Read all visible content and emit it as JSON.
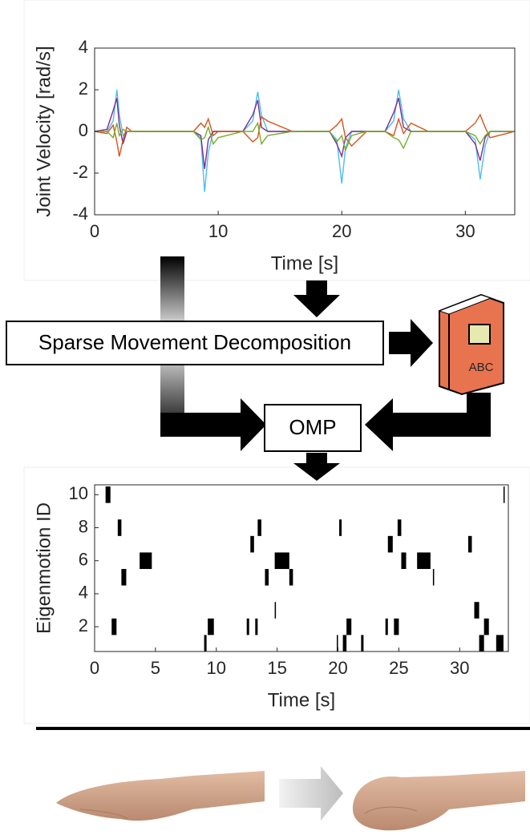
{
  "chart_data": [
    {
      "type": "line",
      "xlabel": "Time [s]",
      "ylabel": "Joint Velocity [rad/s]",
      "xlim": [
        0,
        34
      ],
      "ylim": [
        -4,
        4
      ],
      "xticks": [
        0,
        10,
        20,
        30
      ],
      "yticks": [
        -4,
        -2,
        0,
        2,
        4
      ],
      "x": [
        0,
        1,
        1.5,
        1.8,
        2.0,
        2.3,
        2.6,
        3,
        5,
        8,
        8.6,
        8.9,
        9.2,
        9.6,
        10,
        12,
        12.8,
        13.2,
        13.5,
        14,
        16,
        19,
        19.6,
        20,
        20.3,
        20.8,
        22,
        23.5,
        24.2,
        24.6,
        25,
        25.6,
        27,
        30,
        30.8,
        31.2,
        31.6,
        32,
        34
      ],
      "series": [
        {
          "color": "#4dbeee",
          "values": [
            0,
            0,
            0.5,
            2.0,
            0.8,
            -0.2,
            0,
            0,
            0,
            0,
            -0.3,
            -2.9,
            -1,
            0,
            0,
            0,
            0.5,
            1.9,
            0.8,
            0,
            0,
            0,
            -0.4,
            -2.5,
            -0.8,
            0,
            0,
            0,
            0.5,
            2.0,
            0.6,
            0,
            0,
            0,
            -0.4,
            -2.3,
            -0.7,
            0,
            0
          ]
        },
        {
          "color": "#7e2f8e",
          "values": [
            0,
            0.1,
            1.0,
            1.6,
            0.3,
            -0.6,
            0,
            0,
            0,
            0,
            -0.2,
            -1.8,
            -0.4,
            0,
            0,
            0,
            0.8,
            1.5,
            0.2,
            0,
            0,
            0,
            -0.6,
            -1.2,
            -0.3,
            0,
            0,
            0,
            0.9,
            1.6,
            0.2,
            0,
            0,
            0,
            -0.6,
            -1.4,
            -0.3,
            0,
            0
          ]
        },
        {
          "color": "#d95319",
          "values": [
            0,
            -0.1,
            0.3,
            -0.5,
            -1.2,
            -0.4,
            0.2,
            0,
            0,
            0,
            0.4,
            0.2,
            0.6,
            -0.2,
            0,
            0,
            -0.5,
            -0.3,
            0.7,
            0.5,
            0,
            0,
            0.3,
            0.6,
            -0.3,
            -0.7,
            0,
            0,
            -0.2,
            0.6,
            -0.1,
            0.4,
            0,
            0,
            0.4,
            0.8,
            0.2,
            -0.3,
            0
          ]
        },
        {
          "color": "#77ac30",
          "values": [
            0,
            0,
            -0.3,
            0.4,
            -0.2,
            0.1,
            0,
            0,
            0,
            0,
            -0.4,
            -0.3,
            0.2,
            -0.6,
            -0.3,
            0,
            0,
            0.4,
            -0.6,
            -0.2,
            0,
            0,
            -0.5,
            -0.2,
            -0.9,
            -0.2,
            0,
            0,
            -0.3,
            -0.4,
            -0.8,
            0,
            0,
            0,
            -0.2,
            -0.6,
            -0.2,
            0,
            0
          ]
        }
      ]
    },
    {
      "type": "eventplot",
      "xlabel": "Time [s]",
      "ylabel": "Eigenmotion ID",
      "xlim": [
        0,
        34
      ],
      "ylim": [
        0.5,
        10.6
      ],
      "xticks": [
        0,
        5,
        10,
        15,
        20,
        25,
        30
      ],
      "yticks": [
        2,
        4,
        6,
        8,
        10
      ],
      "color": "#000000",
      "events": [
        {
          "id": 10,
          "start": 0.9,
          "end": 1.3
        },
        {
          "id": 10,
          "start": 33.6,
          "end": 33.7
        },
        {
          "id": 8,
          "start": 1.9,
          "end": 2.2
        },
        {
          "id": 8,
          "start": 13.4,
          "end": 13.7
        },
        {
          "id": 8,
          "start": 20.1,
          "end": 20.3
        },
        {
          "id": 8,
          "start": 24.9,
          "end": 25.2
        },
        {
          "id": 7,
          "start": 12.8,
          "end": 13.1
        },
        {
          "id": 7,
          "start": 24.1,
          "end": 24.5
        },
        {
          "id": 7,
          "start": 30.7,
          "end": 31.0
        },
        {
          "id": 6,
          "start": 3.7,
          "end": 4.7
        },
        {
          "id": 6,
          "start": 14.8,
          "end": 16.0
        },
        {
          "id": 6,
          "start": 25.2,
          "end": 25.6
        },
        {
          "id": 6,
          "start": 26.5,
          "end": 27.6
        },
        {
          "id": 5,
          "start": 2.2,
          "end": 2.6
        },
        {
          "id": 5,
          "start": 14.0,
          "end": 14.3
        },
        {
          "id": 5,
          "start": 16.0,
          "end": 16.3
        },
        {
          "id": 5,
          "start": 27.8,
          "end": 27.9
        },
        {
          "id": 3,
          "start": 14.8,
          "end": 14.9
        },
        {
          "id": 3,
          "start": 31.2,
          "end": 31.6
        },
        {
          "id": 2,
          "start": 1.4,
          "end": 1.8
        },
        {
          "id": 2,
          "start": 9.3,
          "end": 9.8
        },
        {
          "id": 2,
          "start": 12.5,
          "end": 12.7
        },
        {
          "id": 2,
          "start": 13.2,
          "end": 13.4
        },
        {
          "id": 2,
          "start": 20.7,
          "end": 21.1
        },
        {
          "id": 2,
          "start": 23.9,
          "end": 24.1
        },
        {
          "id": 2,
          "start": 24.6,
          "end": 25.0
        },
        {
          "id": 2,
          "start": 32.0,
          "end": 32.4
        },
        {
          "id": 1,
          "start": 9.0,
          "end": 9.2
        },
        {
          "id": 1,
          "start": 19.9,
          "end": 20.0
        },
        {
          "id": 1,
          "start": 20.4,
          "end": 20.7
        },
        {
          "id": 1,
          "start": 21.9,
          "end": 22.1
        },
        {
          "id": 1,
          "start": 31.6,
          "end": 32.0
        },
        {
          "id": 1,
          "start": 33.0,
          "end": 33.6
        }
      ]
    }
  ],
  "diagram": {
    "decomposition": "Sparse Movement Decomposition",
    "omp": "OMP",
    "book_label": "ABC"
  }
}
